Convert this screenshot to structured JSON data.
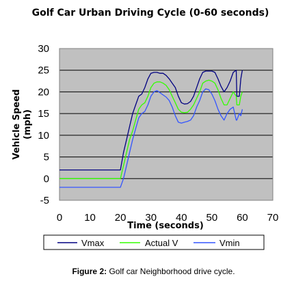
{
  "chart_data": {
    "type": "line",
    "title": "Golf Car Urban Driving Cycle (0-60 seconds)",
    "xlabel": "Time (seconds)",
    "ylabel": "Vehicle Speed (mph)",
    "xlim": [
      0,
      70
    ],
    "ylim": [
      -5,
      30
    ],
    "xticks": [
      0,
      10,
      20,
      30,
      40,
      50,
      60,
      70
    ],
    "yticks": [
      -5,
      0,
      5,
      10,
      15,
      20,
      25,
      30
    ],
    "grid": "horizontal",
    "plot_background": "#c0c0c0",
    "legend_position": "bottom",
    "series": [
      {
        "name": "Vmax",
        "color": "#000080",
        "points": [
          [
            0,
            2
          ],
          [
            19,
            2
          ],
          [
            20,
            2
          ],
          [
            21,
            6
          ],
          [
            22,
            9
          ],
          [
            23,
            12
          ],
          [
            24,
            15
          ],
          [
            25,
            17
          ],
          [
            26,
            19
          ],
          [
            27,
            19.5
          ],
          [
            28,
            21
          ],
          [
            29,
            23
          ],
          [
            30,
            24.3
          ],
          [
            31,
            24.5
          ],
          [
            32,
            24.5
          ],
          [
            33,
            24.3
          ],
          [
            34,
            24.3
          ],
          [
            35,
            23.8
          ],
          [
            36,
            23
          ],
          [
            37,
            22
          ],
          [
            38,
            21
          ],
          [
            39,
            19
          ],
          [
            40,
            17.5
          ],
          [
            41,
            17.2
          ],
          [
            42,
            17.3
          ],
          [
            43,
            17.8
          ],
          [
            44,
            19
          ],
          [
            45,
            21
          ],
          [
            46,
            23
          ],
          [
            47,
            24.5
          ],
          [
            48,
            24.8
          ],
          [
            49,
            24.8
          ],
          [
            50,
            24.8
          ],
          [
            51,
            24.5
          ],
          [
            52,
            23
          ],
          [
            53,
            21.3
          ],
          [
            54,
            20
          ],
          [
            55,
            21
          ],
          [
            56,
            22.5
          ],
          [
            57,
            24.5
          ],
          [
            58,
            25
          ],
          [
            58.2,
            19
          ],
          [
            59,
            19
          ],
          [
            59.5,
            23
          ],
          [
            60,
            25
          ]
        ]
      },
      {
        "name": "Actual V",
        "color": "#33ff00",
        "points": [
          [
            0,
            0
          ],
          [
            20,
            0
          ],
          [
            21,
            3
          ],
          [
            22,
            6
          ],
          [
            23,
            9
          ],
          [
            24,
            11
          ],
          [
            25,
            13.5
          ],
          [
            26,
            16
          ],
          [
            27,
            17
          ],
          [
            28,
            17.5
          ],
          [
            29,
            19
          ],
          [
            30,
            21
          ],
          [
            31,
            22
          ],
          [
            32,
            22.3
          ],
          [
            33,
            22.3
          ],
          [
            34,
            22
          ],
          [
            35,
            21.5
          ],
          [
            36,
            20.5
          ],
          [
            37,
            19
          ],
          [
            38,
            17.5
          ],
          [
            39,
            16
          ],
          [
            40,
            15.3
          ],
          [
            41,
            15.2
          ],
          [
            42,
            15.3
          ],
          [
            43,
            16
          ],
          [
            44,
            17
          ],
          [
            45,
            18.5
          ],
          [
            46,
            20
          ],
          [
            47,
            22
          ],
          [
            48,
            22.5
          ],
          [
            49,
            22.7
          ],
          [
            50,
            22.5
          ],
          [
            51,
            22
          ],
          [
            52,
            20.5
          ],
          [
            53,
            18.5
          ],
          [
            54,
            17
          ],
          [
            55,
            17
          ],
          [
            56,
            18.5
          ],
          [
            57,
            20
          ],
          [
            58,
            19
          ],
          [
            58.2,
            17
          ],
          [
            59,
            17
          ],
          [
            59.5,
            19
          ],
          [
            60,
            20
          ]
        ]
      },
      {
        "name": "Vmin",
        "color": "#3355ff",
        "points": [
          [
            0,
            -2
          ],
          [
            20,
            -2
          ],
          [
            21,
            0
          ],
          [
            22,
            3
          ],
          [
            23,
            6
          ],
          [
            24,
            9
          ],
          [
            25,
            11.5
          ],
          [
            26,
            14
          ],
          [
            27,
            15
          ],
          [
            28,
            15.5
          ],
          [
            29,
            17
          ],
          [
            30,
            19
          ],
          [
            31,
            20
          ],
          [
            32,
            20.3
          ],
          [
            33,
            19.8
          ],
          [
            34,
            19.3
          ],
          [
            35,
            18.8
          ],
          [
            36,
            18
          ],
          [
            37,
            16.5
          ],
          [
            38,
            14.5
          ],
          [
            39,
            13
          ],
          [
            40,
            12.8
          ],
          [
            41,
            13
          ],
          [
            42,
            13.2
          ],
          [
            43,
            13.5
          ],
          [
            44,
            14.5
          ],
          [
            45,
            16.5
          ],
          [
            46,
            18
          ],
          [
            47,
            20
          ],
          [
            48,
            20.7
          ],
          [
            49,
            20.5
          ],
          [
            50,
            19.5
          ],
          [
            51,
            18
          ],
          [
            52,
            16
          ],
          [
            53,
            14.5
          ],
          [
            54,
            13.5
          ],
          [
            55,
            15
          ],
          [
            56,
            16
          ],
          [
            57,
            16.5
          ],
          [
            58,
            13.5
          ],
          [
            58.2,
            13.5
          ],
          [
            59,
            15
          ],
          [
            59.5,
            14.5
          ],
          [
            60,
            16
          ]
        ]
      }
    ]
  },
  "caption": {
    "prefix": "Figure 2:",
    "text": "Golf car Neighborhood drive cycle."
  }
}
